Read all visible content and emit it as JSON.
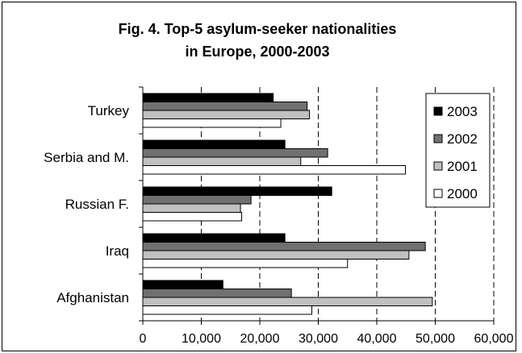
{
  "chart_data": {
    "type": "bar",
    "orientation": "horizontal",
    "title_line1": "Fig. 4. Top-5 asylum-seeker nationalities",
    "title_line2": "in Europe, 2000-2003",
    "categories": [
      "Turkey",
      "Serbia and M.",
      "Russian F.",
      "Iraq",
      "Afghanistan"
    ],
    "series": [
      {
        "name": "2003",
        "color": "#000000",
        "values": [
          22300,
          24300,
          32300,
          24300,
          13700
        ]
      },
      {
        "name": "2002",
        "color": "#707070",
        "values": [
          28100,
          31600,
          18500,
          48300,
          25400
        ]
      },
      {
        "name": "2001",
        "color": "#c0c0c0",
        "values": [
          28500,
          27000,
          16700,
          45500,
          49500
        ]
      },
      {
        "name": "2000",
        "color": "#ffffff",
        "values": [
          23600,
          44900,
          16900,
          35000,
          28900
        ]
      }
    ],
    "x_ticks": [
      "0",
      "10,000",
      "20,000",
      "30,000",
      "40,000",
      "50,000",
      "60,000"
    ],
    "xlim": [
      0,
      60000
    ],
    "grid": "vertical dashed",
    "legend_position": "right"
  }
}
